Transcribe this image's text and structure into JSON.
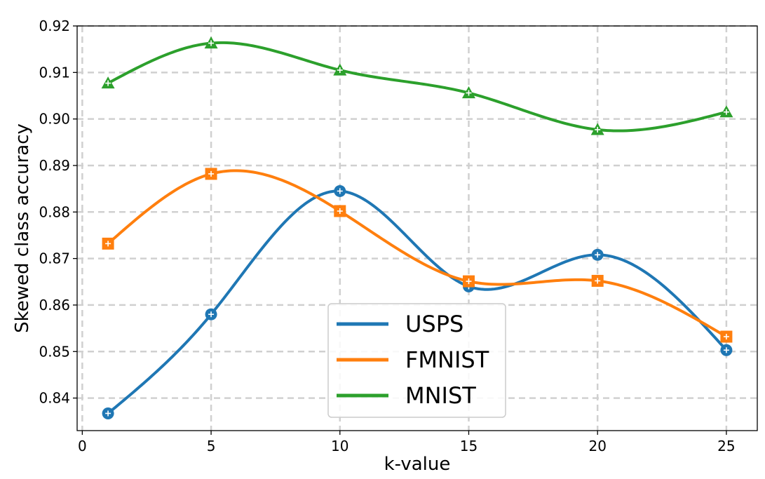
{
  "chart_data": {
    "type": "line",
    "xlabel": "k-value",
    "ylabel": "Skewed class accuracy",
    "x": [
      1,
      5,
      10,
      15,
      20,
      25
    ],
    "xlim": [
      -0.2,
      26.2
    ],
    "ylim": [
      0.833,
      0.92
    ],
    "xticks": [
      "0",
      "5",
      "10",
      "15",
      "20",
      "25"
    ],
    "yticks": [
      "0.84",
      "0.85",
      "0.86",
      "0.87",
      "0.88",
      "0.89",
      "0.90",
      "0.91",
      "0.92"
    ],
    "grid": true,
    "legend_position": "lower center",
    "smoothed": true,
    "series": [
      {
        "name": "USPS",
        "color": "#1f77b4",
        "marker": "circle",
        "values": [
          0.8367,
          0.858,
          0.8845,
          0.864,
          0.8708,
          0.8503
        ]
      },
      {
        "name": "FMNIST",
        "color": "#ff7f0e",
        "marker": "square",
        "values": [
          0.8732,
          0.8882,
          0.8802,
          0.8651,
          0.8652,
          0.8532
        ]
      },
      {
        "name": "MNIST",
        "color": "#2ca02c",
        "marker": "triangle",
        "values": [
          0.9077,
          0.9163,
          0.9105,
          0.9056,
          0.8977,
          0.9015
        ]
      }
    ]
  }
}
